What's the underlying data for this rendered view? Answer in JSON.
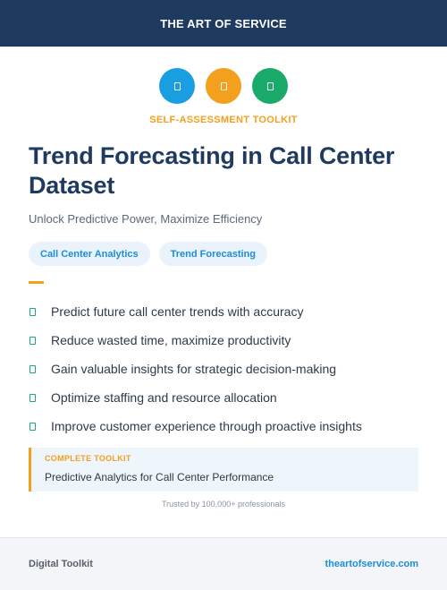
{
  "header": {
    "brand": "THE ART OF SERVICE"
  },
  "icons": [
    {
      "name": "blue-document-icon",
      "color": "#1a9ee2"
    },
    {
      "name": "orange-document-icon",
      "color": "#f2a01d"
    },
    {
      "name": "green-document-icon",
      "color": "#1aab6b"
    }
  ],
  "kicker": "SELF-ASSESSMENT TOOLKIT",
  "title": "Trend Forecasting in Call Center Dataset",
  "subtitle": "Unlock Predictive Power, Maximize Efficiency",
  "tags": [
    "Call Center Analytics",
    "Trend Forecasting"
  ],
  "benefits": [
    "Predict future call center trends with accuracy",
    "Reduce wasted time, maximize productivity",
    "Gain valuable insights for strategic decision-making",
    "Optimize staffing and resource allocation",
    "Improve customer experience through proactive insights"
  ],
  "toolkit": {
    "label": "COMPLETE TOOLKIT",
    "name": "Predictive Analytics for Call Center Performance"
  },
  "trusted": "Trusted by 100,000+ professionals",
  "footer": {
    "left": "Digital Toolkit",
    "link": "theartofservice.com"
  },
  "colors": {
    "navy": "#1f3a5f",
    "orange": "#f2a01d",
    "blue": "#1a8ed6",
    "green": "#1aab6b"
  }
}
